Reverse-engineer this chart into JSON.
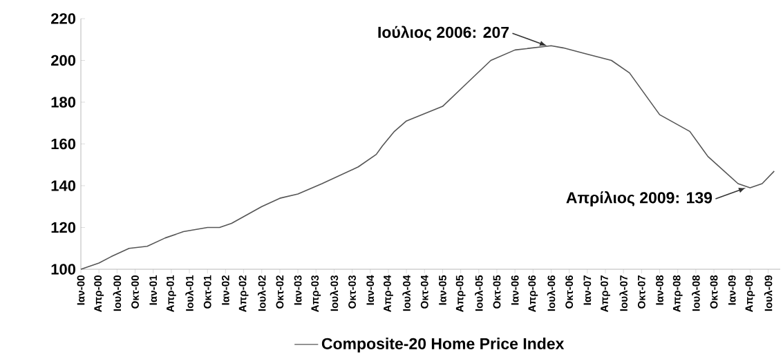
{
  "chart_data": {
    "type": "line",
    "x": [
      "2000-01",
      "2000-04",
      "2000-06",
      "2000-09",
      "2000-12",
      "2001-03",
      "2001-06",
      "2001-10",
      "2001-12",
      "2002-02",
      "2002-07",
      "2002-10",
      "2003-01",
      "2003-05",
      "2003-08",
      "2003-11",
      "2004-02",
      "2004-03",
      "2004-05",
      "2004-07",
      "2005-01",
      "2005-05",
      "2005-09",
      "2006-01",
      "2006-07",
      "2006-09",
      "2007-01",
      "2007-05",
      "2007-08",
      "2008-01",
      "2008-06",
      "2008-09",
      "2009-02",
      "2009-04",
      "2009-06",
      "2009-08"
    ],
    "series": [
      {
        "name": "Composite-20 Home Price Index",
        "color": "#555555",
        "values": [
          100,
          103,
          106,
          110,
          111,
          115,
          118,
          120,
          120,
          122,
          130,
          134,
          136,
          141,
          145,
          149,
          155,
          159,
          166,
          171,
          178,
          189,
          200,
          205,
          207,
          206,
          203,
          200,
          194,
          174,
          166,
          154,
          141,
          139,
          141,
          147
        ]
      }
    ],
    "xlim": [
      "2000-01",
      "2009-09"
    ],
    "xticks": [
      {
        "value": "2000-01",
        "label": "Ιαν-00"
      },
      {
        "value": "2000-04",
        "label": "Απρ-00"
      },
      {
        "value": "2000-07",
        "label": "Ιουλ-00"
      },
      {
        "value": "2000-10",
        "label": "Οκτ-00"
      },
      {
        "value": "2001-01",
        "label": "Ιαν-01"
      },
      {
        "value": "2001-04",
        "label": "Απρ-01"
      },
      {
        "value": "2001-07",
        "label": "Ιουλ-01"
      },
      {
        "value": "2001-10",
        "label": "Οκτ-01"
      },
      {
        "value": "2002-01",
        "label": "Ιαν-02"
      },
      {
        "value": "2002-04",
        "label": "Απρ-02"
      },
      {
        "value": "2002-07",
        "label": "Ιουλ-02"
      },
      {
        "value": "2002-10",
        "label": "Οκτ-02"
      },
      {
        "value": "2003-01",
        "label": "Ιαν-03"
      },
      {
        "value": "2003-04",
        "label": "Απρ-03"
      },
      {
        "value": "2003-07",
        "label": "Ιουλ-03"
      },
      {
        "value": "2003-10",
        "label": "Οκτ-03"
      },
      {
        "value": "2004-01",
        "label": "Ιαν-04"
      },
      {
        "value": "2004-04",
        "label": "Απρ-04"
      },
      {
        "value": "2004-07",
        "label": "Ιουλ-04"
      },
      {
        "value": "2004-10",
        "label": "Οκτ-04"
      },
      {
        "value": "2005-01",
        "label": "Ιαν-05"
      },
      {
        "value": "2005-04",
        "label": "Απρ-05"
      },
      {
        "value": "2005-07",
        "label": "Ιουλ-05"
      },
      {
        "value": "2005-10",
        "label": "Οκτ-05"
      },
      {
        "value": "2006-01",
        "label": "Ιαν-06"
      },
      {
        "value": "2006-04",
        "label": "Απρ-06"
      },
      {
        "value": "2006-07",
        "label": "Ιουλ-06"
      },
      {
        "value": "2006-10",
        "label": "Οκτ-06"
      },
      {
        "value": "2007-01",
        "label": "Ιαν-07"
      },
      {
        "value": "2007-04",
        "label": "Απρ-07"
      },
      {
        "value": "2007-07",
        "label": "Ιουλ-07"
      },
      {
        "value": "2007-10",
        "label": "Οκτ-07"
      },
      {
        "value": "2008-01",
        "label": "Ιαν-08"
      },
      {
        "value": "2008-04",
        "label": "Απρ-08"
      },
      {
        "value": "2008-07",
        "label": "Ιουλ-08"
      },
      {
        "value": "2008-10",
        "label": "Οκτ-08"
      },
      {
        "value": "2009-01",
        "label": "Ιαν-09"
      },
      {
        "value": "2009-04",
        "label": "Απρ-09"
      },
      {
        "value": "2009-07",
        "label": "Ιουλ-09"
      }
    ],
    "ylim": [
      100,
      220
    ],
    "yticks": [
      100,
      120,
      140,
      160,
      180,
      200,
      220
    ],
    "legend": "bottom",
    "annotations": [
      {
        "text": "Ιούλιος 2006: 207",
        "x": "2006-07",
        "y": 207
      },
      {
        "text": "Απρίλιος 2009: 139",
        "x": "2009-04",
        "y": 139
      }
    ]
  }
}
